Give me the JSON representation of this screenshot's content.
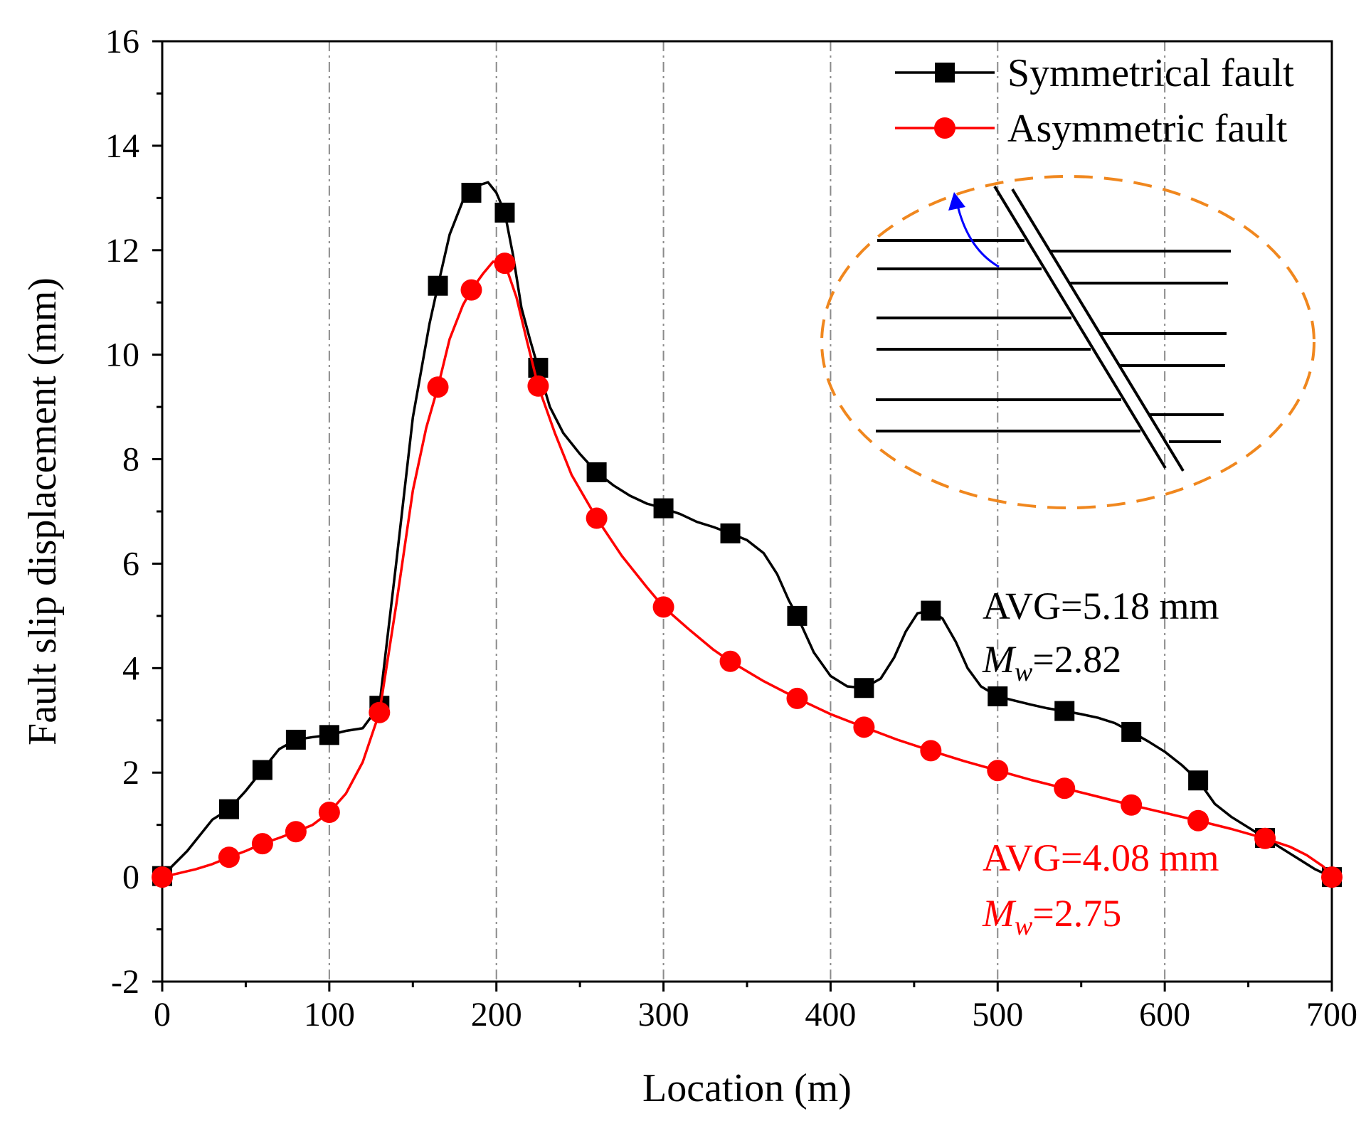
{
  "chart_data": {
    "type": "line",
    "title": "",
    "xlabel": "Location (m)",
    "ylabel": "Fault slip displacement (mm)",
    "xlim": [
      0,
      700
    ],
    "ylim": [
      -2,
      16
    ],
    "x_ticks": [
      "0",
      "100",
      "200",
      "300",
      "400",
      "500",
      "600",
      "700"
    ],
    "y_ticks": [
      "-2",
      "0",
      "2",
      "4",
      "6",
      "8",
      "10",
      "12",
      "14",
      "16"
    ],
    "x_gridlines": [
      100,
      200,
      300,
      400,
      500,
      600
    ],
    "legend_position": "top-right",
    "series": [
      {
        "name": "Symmetrical fault",
        "color": "#000000",
        "marker": "square",
        "markers": [
          [
            0,
            0.02
          ],
          [
            40,
            1.3
          ],
          [
            60,
            2.05
          ],
          [
            80,
            2.63
          ],
          [
            100,
            2.72
          ],
          [
            130,
            3.28
          ],
          [
            165,
            11.32
          ],
          [
            185,
            13.1
          ],
          [
            205,
            12.72
          ],
          [
            225,
            9.75
          ],
          [
            260,
            7.75
          ],
          [
            300,
            7.06
          ],
          [
            340,
            6.58
          ],
          [
            380,
            5.0
          ],
          [
            420,
            3.62
          ],
          [
            460,
            5.1
          ],
          [
            500,
            3.46
          ],
          [
            540,
            3.18
          ],
          [
            580,
            2.78
          ],
          [
            620,
            1.85
          ],
          [
            660,
            0.75
          ],
          [
            700,
            0.0
          ]
        ],
        "curve": [
          [
            0,
            0.02
          ],
          [
            15,
            0.5
          ],
          [
            30,
            1.1
          ],
          [
            40,
            1.3
          ],
          [
            50,
            1.65
          ],
          [
            60,
            2.05
          ],
          [
            70,
            2.45
          ],
          [
            80,
            2.63
          ],
          [
            90,
            2.68
          ],
          [
            100,
            2.72
          ],
          [
            110,
            2.8
          ],
          [
            120,
            2.85
          ],
          [
            130,
            3.28
          ],
          [
            140,
            6.0
          ],
          [
            150,
            8.8
          ],
          [
            160,
            10.6
          ],
          [
            165,
            11.32
          ],
          [
            172,
            12.3
          ],
          [
            180,
            12.95
          ],
          [
            185,
            13.1
          ],
          [
            190,
            13.25
          ],
          [
            195,
            13.3
          ],
          [
            200,
            13.1
          ],
          [
            205,
            12.72
          ],
          [
            210,
            11.9
          ],
          [
            215,
            10.9
          ],
          [
            220,
            10.3
          ],
          [
            225,
            9.75
          ],
          [
            232,
            9.0
          ],
          [
            240,
            8.5
          ],
          [
            250,
            8.1
          ],
          [
            260,
            7.75
          ],
          [
            270,
            7.5
          ],
          [
            280,
            7.3
          ],
          [
            290,
            7.15
          ],
          [
            300,
            7.06
          ],
          [
            310,
            6.95
          ],
          [
            320,
            6.8
          ],
          [
            330,
            6.7
          ],
          [
            340,
            6.58
          ],
          [
            350,
            6.45
          ],
          [
            360,
            6.2
          ],
          [
            368,
            5.8
          ],
          [
            375,
            5.3
          ],
          [
            380,
            5.0
          ],
          [
            390,
            4.3
          ],
          [
            400,
            3.85
          ],
          [
            410,
            3.65
          ],
          [
            420,
            3.62
          ],
          [
            430,
            3.8
          ],
          [
            438,
            4.2
          ],
          [
            445,
            4.7
          ],
          [
            452,
            5.05
          ],
          [
            460,
            5.1
          ],
          [
            467,
            4.95
          ],
          [
            475,
            4.5
          ],
          [
            482,
            4.0
          ],
          [
            490,
            3.65
          ],
          [
            500,
            3.46
          ],
          [
            510,
            3.38
          ],
          [
            520,
            3.3
          ],
          [
            530,
            3.23
          ],
          [
            540,
            3.18
          ],
          [
            550,
            3.12
          ],
          [
            560,
            3.05
          ],
          [
            570,
            2.95
          ],
          [
            580,
            2.78
          ],
          [
            590,
            2.6
          ],
          [
            600,
            2.4
          ],
          [
            610,
            2.15
          ],
          [
            620,
            1.85
          ],
          [
            630,
            1.4
          ],
          [
            640,
            1.15
          ],
          [
            650,
            0.95
          ],
          [
            660,
            0.75
          ],
          [
            670,
            0.55
          ],
          [
            680,
            0.35
          ],
          [
            690,
            0.15
          ],
          [
            700,
            0.0
          ]
        ]
      },
      {
        "name": "Asymmetric fault",
        "color": "#ff0000",
        "marker": "circle",
        "markers": [
          [
            0,
            0.0
          ],
          [
            40,
            0.38
          ],
          [
            60,
            0.64
          ],
          [
            80,
            0.87
          ],
          [
            100,
            1.24
          ],
          [
            130,
            3.15
          ],
          [
            165,
            9.38
          ],
          [
            185,
            11.24
          ],
          [
            205,
            11.75
          ],
          [
            225,
            9.4
          ],
          [
            260,
            6.87
          ],
          [
            300,
            5.17
          ],
          [
            340,
            4.13
          ],
          [
            380,
            3.42
          ],
          [
            420,
            2.87
          ],
          [
            460,
            2.42
          ],
          [
            500,
            2.04
          ],
          [
            540,
            1.7
          ],
          [
            580,
            1.38
          ],
          [
            620,
            1.08
          ],
          [
            660,
            0.74
          ],
          [
            700,
            0.0
          ]
        ],
        "curve": [
          [
            0,
            0.0
          ],
          [
            20,
            0.15
          ],
          [
            30,
            0.25
          ],
          [
            40,
            0.38
          ],
          [
            50,
            0.5
          ],
          [
            60,
            0.64
          ],
          [
            70,
            0.75
          ],
          [
            80,
            0.87
          ],
          [
            90,
            1.0
          ],
          [
            100,
            1.24
          ],
          [
            110,
            1.6
          ],
          [
            120,
            2.2
          ],
          [
            130,
            3.15
          ],
          [
            140,
            5.2
          ],
          [
            150,
            7.4
          ],
          [
            158,
            8.6
          ],
          [
            165,
            9.38
          ],
          [
            172,
            10.3
          ],
          [
            180,
            10.95
          ],
          [
            185,
            11.24
          ],
          [
            192,
            11.55
          ],
          [
            198,
            11.78
          ],
          [
            205,
            11.75
          ],
          [
            212,
            11.1
          ],
          [
            218,
            10.3
          ],
          [
            225,
            9.4
          ],
          [
            235,
            8.5
          ],
          [
            245,
            7.7
          ],
          [
            260,
            6.87
          ],
          [
            275,
            6.15
          ],
          [
            290,
            5.55
          ],
          [
            300,
            5.17
          ],
          [
            315,
            4.75
          ],
          [
            330,
            4.35
          ],
          [
            340,
            4.13
          ],
          [
            360,
            3.75
          ],
          [
            380,
            3.42
          ],
          [
            400,
            3.12
          ],
          [
            420,
            2.87
          ],
          [
            440,
            2.63
          ],
          [
            460,
            2.42
          ],
          [
            480,
            2.22
          ],
          [
            500,
            2.04
          ],
          [
            520,
            1.86
          ],
          [
            540,
            1.7
          ],
          [
            560,
            1.54
          ],
          [
            580,
            1.38
          ],
          [
            600,
            1.23
          ],
          [
            620,
            1.08
          ],
          [
            640,
            0.92
          ],
          [
            660,
            0.74
          ],
          [
            675,
            0.58
          ],
          [
            685,
            0.42
          ],
          [
            695,
            0.2
          ],
          [
            700,
            0.0
          ]
        ]
      }
    ],
    "annotations": [
      {
        "avg": "AVG=5.18 mm",
        "mw_symbol": "M",
        "mw_sub": "w",
        "mw_value": "=2.82",
        "color": "#000000"
      },
      {
        "avg": "AVG=4.08 mm",
        "mw_symbol": "M",
        "mw_sub": "w",
        "mw_value": "=2.75",
        "color": "#ff0000"
      }
    ],
    "inset": {
      "description_colors": {
        "ellipse": "#f0871e",
        "arrow": "#0000ff",
        "lines": "#000000"
      }
    }
  }
}
